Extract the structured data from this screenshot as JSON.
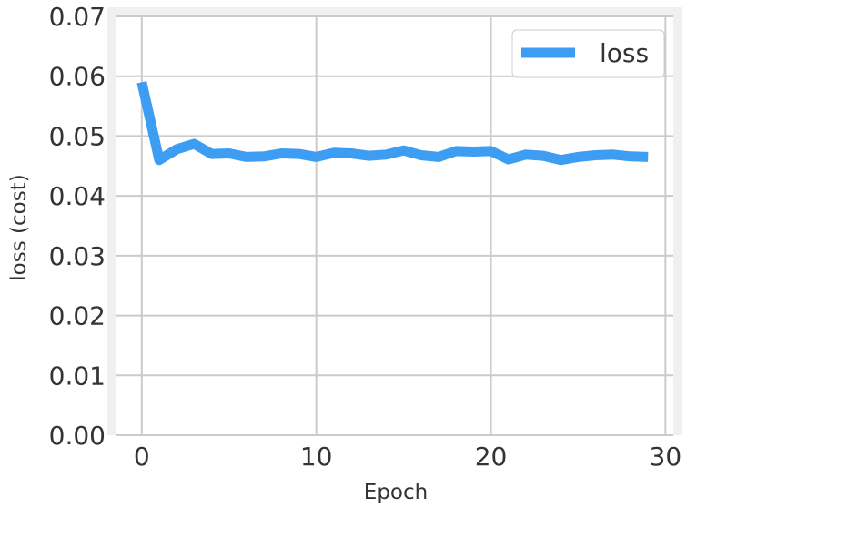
{
  "chart_data": {
    "type": "line",
    "xlabel": "Epoch",
    "ylabel": "loss (cost)",
    "xlim": [
      -1.45,
      30.45
    ],
    "ylim": [
      0,
      0.07
    ],
    "xticks": [
      0,
      10,
      20,
      30
    ],
    "xtick_labels": [
      "0",
      "10",
      "20",
      "30"
    ],
    "yticks": [
      0,
      0.01,
      0.02,
      0.03,
      0.04,
      0.05,
      0.06,
      0.07
    ],
    "ytick_labels": [
      "0.00",
      "0.01",
      "0.02",
      "0.03",
      "0.04",
      "0.05",
      "0.06",
      "0.07"
    ],
    "grid": true,
    "legend_position": "top-right",
    "x": [
      0,
      1,
      2,
      3,
      4,
      5,
      6,
      7,
      8,
      9,
      10,
      11,
      12,
      13,
      14,
      15,
      16,
      17,
      18,
      19,
      20,
      21,
      22,
      23,
      24,
      25,
      26,
      27,
      28,
      29
    ],
    "series": [
      {
        "name": "loss",
        "color": "#3d9df3",
        "values": [
          0.059,
          0.046,
          0.0478,
          0.0487,
          0.047,
          0.0471,
          0.0465,
          0.0466,
          0.0471,
          0.047,
          0.0465,
          0.0472,
          0.0471,
          0.0467,
          0.0469,
          0.0476,
          0.0468,
          0.0465,
          0.0475,
          0.0474,
          0.0475,
          0.0461,
          0.0469,
          0.0467,
          0.046,
          0.0465,
          0.0468,
          0.0469,
          0.0466,
          0.0465
        ]
      }
    ]
  },
  "colors": {
    "plot_background": "#ffffff",
    "frame": "#f0f0f0",
    "grid": "#cbcbcb",
    "text": "#333333"
  }
}
